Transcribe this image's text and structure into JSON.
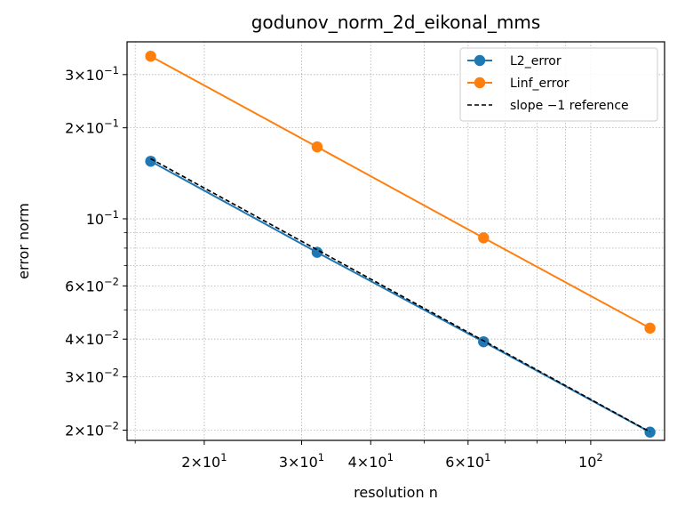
{
  "chart_data": {
    "type": "line",
    "title": "godunov_norm_2d_eikonal_mms",
    "xlabel": "resolution n",
    "ylabel": "error norm",
    "xscale": "log",
    "yscale": "log",
    "xlim": [
      14.5,
      136
    ],
    "ylim": [
      0.0185,
      0.385
    ],
    "grid": true,
    "legend_position": "top-right",
    "x": [
      16,
      32,
      64,
      128
    ],
    "series": [
      {
        "name": "L2_error",
        "values": [
          0.155,
          0.0775,
          0.0392,
          0.0197
        ],
        "color": "#1f77b4",
        "marker": "circle",
        "linestyle": "solid"
      },
      {
        "name": "Linf_error",
        "values": [
          0.345,
          0.173,
          0.0865,
          0.0435
        ],
        "color": "#ff7f0e",
        "marker": "circle",
        "linestyle": "solid"
      },
      {
        "name": "slope −1 reference",
        "values": [
          0.158,
          0.079,
          0.0395,
          0.01975
        ],
        "color": "#000000",
        "marker": "none",
        "linestyle": "dashed"
      }
    ],
    "x_major_ticks": [
      {
        "value": 20,
        "mant": "2",
        "exp": "1"
      },
      {
        "value": 30,
        "mant": "3",
        "exp": "1"
      },
      {
        "value": 40,
        "mant": "4",
        "exp": "1"
      },
      {
        "value": 60,
        "mant": "6",
        "exp": "1"
      },
      {
        "value": 100,
        "mant": "",
        "exp": "2"
      }
    ],
    "x_minor_ticks": [
      15,
      50,
      70,
      80,
      90
    ],
    "y_major_ticks": [
      {
        "value": 0.3,
        "mant": "3",
        "exp": "−1"
      },
      {
        "value": 0.2,
        "mant": "2",
        "exp": "−1"
      },
      {
        "value": 0.1,
        "mant": "",
        "exp": "−1"
      },
      {
        "value": 0.06,
        "mant": "6",
        "exp": "−2"
      },
      {
        "value": 0.04,
        "mant": "4",
        "exp": "−2"
      },
      {
        "value": 0.03,
        "mant": "3",
        "exp": "−2"
      },
      {
        "value": 0.02,
        "mant": "2",
        "exp": "−2"
      }
    ],
    "y_minor_ticks": [
      0.09,
      0.08,
      0.07,
      0.05
    ]
  }
}
